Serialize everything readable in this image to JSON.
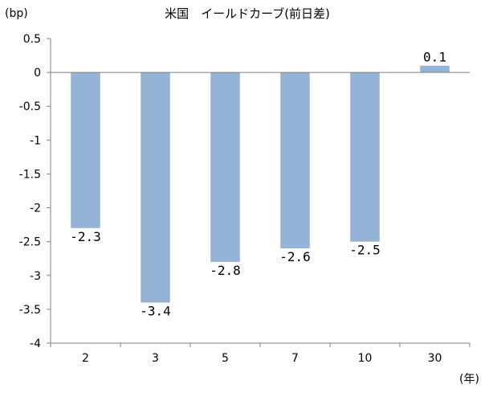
{
  "chart_data": {
    "type": "bar",
    "title": "米国　イールドカーブ(前日差)",
    "ylabel": "(bp)",
    "xlabel": "(年)",
    "categories": [
      "2",
      "3",
      "5",
      "7",
      "10",
      "30"
    ],
    "values": [
      -2.3,
      -3.4,
      -2.8,
      -2.6,
      -2.5,
      0.1
    ],
    "data_labels": [
      "-2.3",
      "-3.4",
      "-2.8",
      "-2.6",
      "-2.5",
      "0.1"
    ],
    "ylim": [
      -4,
      0.5
    ],
    "yticks": [
      0.5,
      0,
      -0.5,
      -1,
      -1.5,
      -2,
      -2.5,
      -3,
      -3.5,
      -4
    ],
    "ytick_labels": [
      "0.5",
      "0",
      "-0.5",
      "-1",
      "-1.5",
      "-2",
      "-2.5",
      "-3",
      "-3.5",
      "-4"
    ],
    "grid": false,
    "legend": "none",
    "bar_color": "#95b3d7"
  }
}
